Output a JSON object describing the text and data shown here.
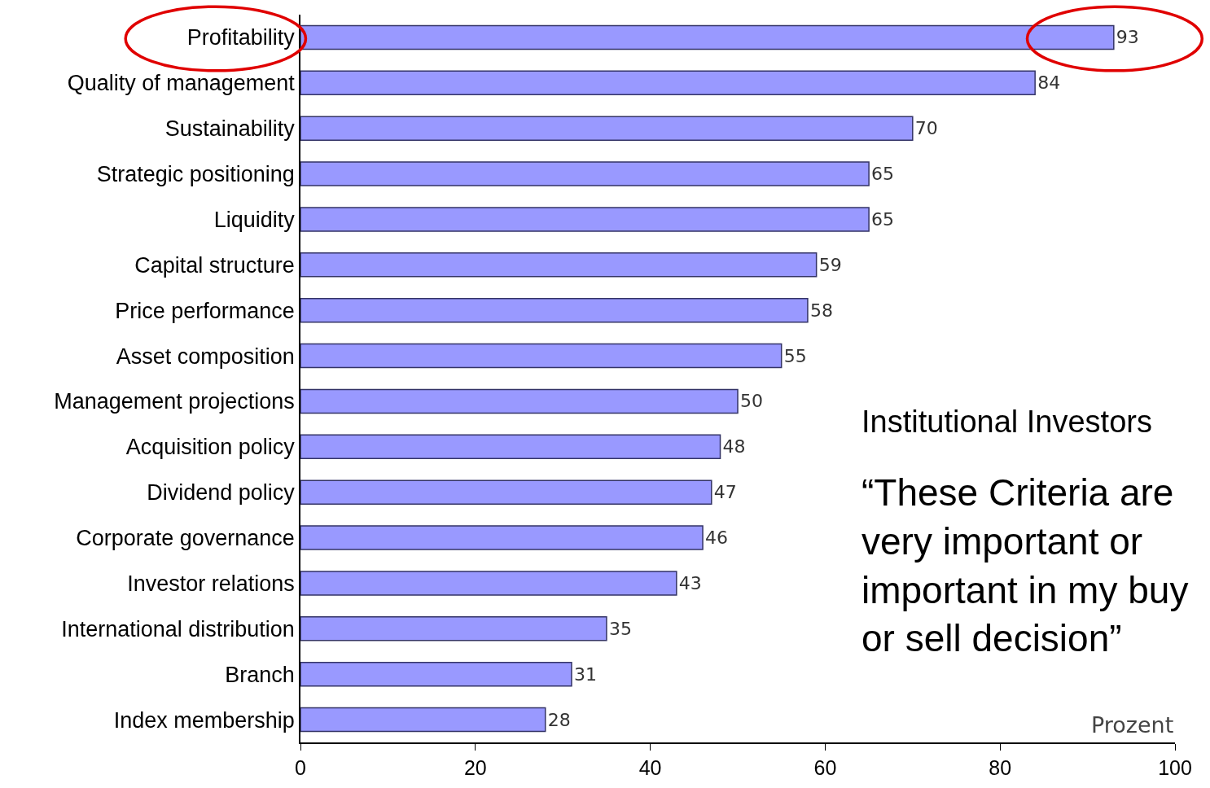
{
  "chart_data": {
    "type": "bar",
    "orientation": "horizontal",
    "categories": [
      "Profitability",
      "Quality of management",
      "Sustainability",
      "Strategic positioning",
      "Liquidity",
      "Capital structure",
      "Price performance",
      "Asset composition",
      "Management projections",
      "Acquisition policy",
      "Dividend policy",
      "Corporate governance",
      "Investor relations",
      "International distribution",
      "Branch",
      "Index membership"
    ],
    "values": [
      93,
      84,
      70,
      65,
      65,
      59,
      58,
      55,
      50,
      48,
      47,
      46,
      43,
      35,
      31,
      28
    ],
    "color": "#9999ff",
    "data_labels": true,
    "xlabel": "Prozent",
    "xlim": [
      0,
      100
    ],
    "xticks": [
      0,
      20,
      40,
      60,
      80,
      100
    ],
    "grid": false,
    "annotations": [
      "Institutional Investors",
      "“These Criteria are very important or important in my buy or sell decision”"
    ]
  }
}
